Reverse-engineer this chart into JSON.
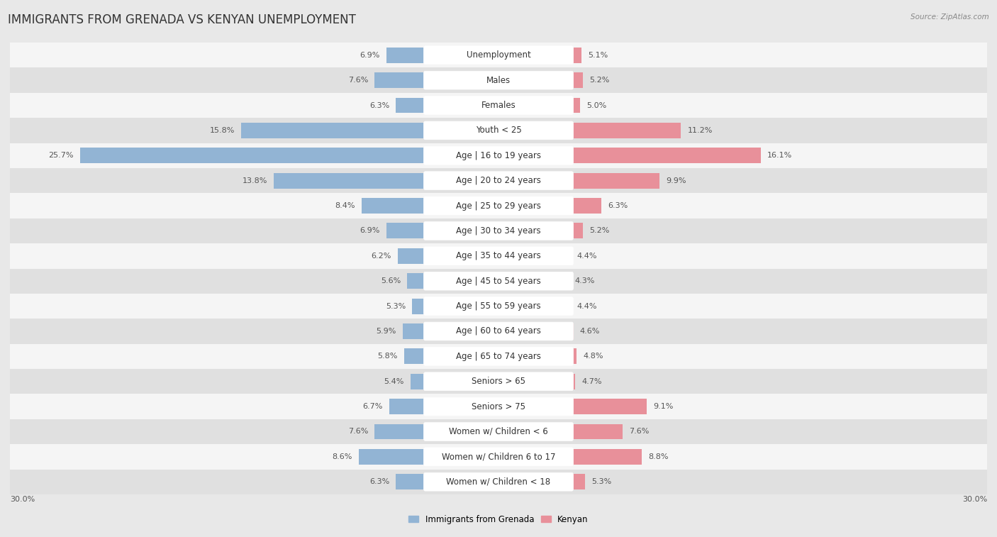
{
  "title": "IMMIGRANTS FROM GRENADA VS KENYAN UNEMPLOYMENT",
  "source": "Source: ZipAtlas.com",
  "categories": [
    "Unemployment",
    "Males",
    "Females",
    "Youth < 25",
    "Age | 16 to 19 years",
    "Age | 20 to 24 years",
    "Age | 25 to 29 years",
    "Age | 30 to 34 years",
    "Age | 35 to 44 years",
    "Age | 45 to 54 years",
    "Age | 55 to 59 years",
    "Age | 60 to 64 years",
    "Age | 65 to 74 years",
    "Seniors > 65",
    "Seniors > 75",
    "Women w/ Children < 6",
    "Women w/ Children 6 to 17",
    "Women w/ Children < 18"
  ],
  "left_values": [
    6.9,
    7.6,
    6.3,
    15.8,
    25.7,
    13.8,
    8.4,
    6.9,
    6.2,
    5.6,
    5.3,
    5.9,
    5.8,
    5.4,
    6.7,
    7.6,
    8.6,
    6.3
  ],
  "right_values": [
    5.1,
    5.2,
    5.0,
    11.2,
    16.1,
    9.9,
    6.3,
    5.2,
    4.4,
    4.3,
    4.4,
    4.6,
    4.8,
    4.7,
    9.1,
    7.6,
    8.8,
    5.3
  ],
  "left_color": "#92b4d4",
  "right_color": "#e8909a",
  "max_val": 30.0,
  "bg_color": "#e8e8e8",
  "row_light_color": "#f5f5f5",
  "row_dark_color": "#e0e0e0",
  "legend_left": "Immigrants from Grenada",
  "legend_right": "Kenyan",
  "title_fontsize": 12,
  "label_fontsize": 8.5,
  "value_fontsize": 8.0
}
